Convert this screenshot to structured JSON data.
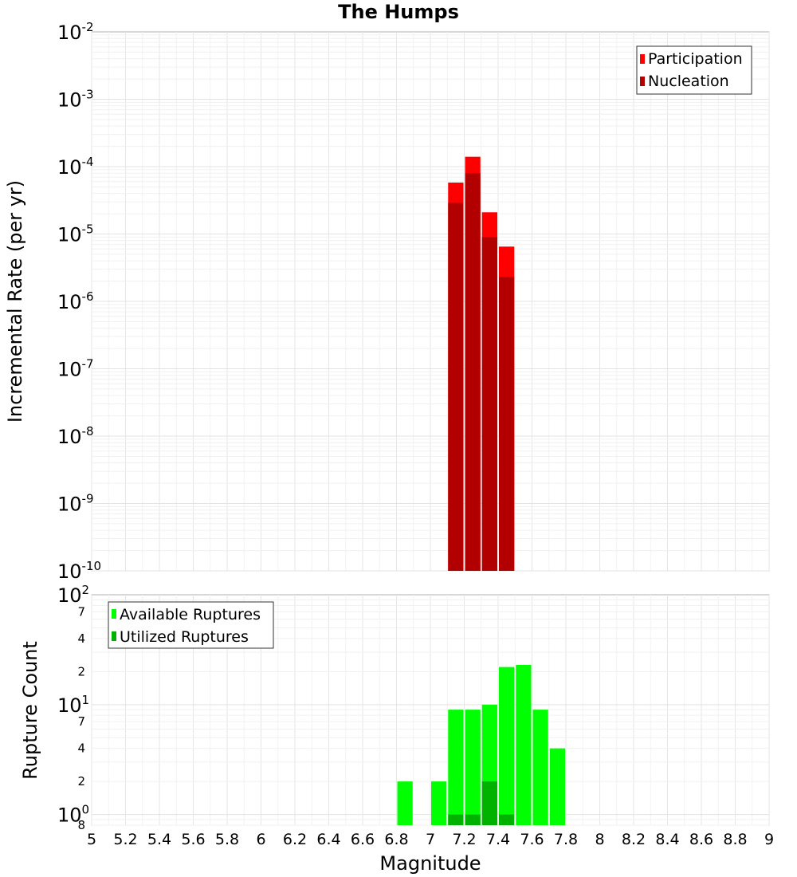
{
  "chart_data": [
    {
      "type": "bar",
      "title": "The Humps",
      "xlabel": "",
      "ylabel": "Incremental Rate (per yr)",
      "yscale": "log",
      "ylim": [
        1e-10,
        0.01
      ],
      "xlim": [
        5,
        9
      ],
      "bin_width": 0.1,
      "y_ticks": [
        {
          "base": "10",
          "exp": "-10",
          "value": 1e-10
        },
        {
          "base": "10",
          "exp": "-9",
          "value": 1e-09
        },
        {
          "base": "10",
          "exp": "-8",
          "value": 1e-08
        },
        {
          "base": "10",
          "exp": "-7",
          "value": 1e-07
        },
        {
          "base": "10",
          "exp": "-6",
          "value": 1e-06
        },
        {
          "base": "10",
          "exp": "-5",
          "value": 1e-05
        },
        {
          "base": "10",
          "exp": "-4",
          "value": 0.0001
        },
        {
          "base": "10",
          "exp": "-3",
          "value": 0.001
        },
        {
          "base": "10",
          "exp": "-2",
          "value": 0.01
        }
      ],
      "legend_position": "top-right",
      "series": [
        {
          "name": "Participation",
          "color": "#ff0000",
          "x": [
            7.15,
            7.25,
            7.35,
            7.45
          ],
          "values": [
            5.8e-05,
            0.00014,
            2.1e-05,
            6.5e-06
          ]
        },
        {
          "name": "Nucleation",
          "color": "#b20000",
          "x": [
            7.15,
            7.25,
            7.35,
            7.45
          ],
          "values": [
            2.9e-05,
            8e-05,
            9e-06,
            2.3e-06
          ]
        }
      ]
    },
    {
      "type": "bar",
      "title": "",
      "xlabel": "Magnitude",
      "ylabel": "Rupture Count",
      "yscale": "log",
      "ylim": [
        0.8,
        100
      ],
      "xlim": [
        5,
        9
      ],
      "bin_width": 0.1,
      "x_ticks": [
        "5",
        "5.2",
        "5.4",
        "5.6",
        "5.8",
        "6",
        "6.2",
        "6.4",
        "6.6",
        "6.8",
        "7",
        "7.2",
        "7.4",
        "7.6",
        "7.8",
        "8",
        "8.2",
        "8.4",
        "8.6",
        "8.8",
        "9"
      ],
      "y_major_ticks": [
        {
          "base": "10",
          "exp": "0",
          "value": 1
        },
        {
          "base": "10",
          "exp": "1",
          "value": 10
        },
        {
          "base": "10",
          "exp": "2",
          "value": 100
        }
      ],
      "y_minor_ticks": [
        {
          "label": "8",
          "value": 0.8
        },
        {
          "label": "2",
          "value": 2
        },
        {
          "label": "4",
          "value": 4
        },
        {
          "label": "7",
          "value": 7
        },
        {
          "label": "2",
          "value": 20
        },
        {
          "label": "4",
          "value": 40
        },
        {
          "label": "7",
          "value": 70
        }
      ],
      "legend_position": "top-left",
      "series": [
        {
          "name": "Available Ruptures",
          "color": "#00ff00",
          "x": [
            6.85,
            7.05,
            7.15,
            7.25,
            7.35,
            7.45,
            7.55,
            7.65,
            7.75
          ],
          "values": [
            2,
            2,
            9,
            9,
            10,
            22,
            23,
            9,
            4
          ]
        },
        {
          "name": "Utilized Ruptures",
          "color": "#00b200",
          "x": [
            7.15,
            7.25,
            7.35,
            7.45
          ],
          "values": [
            1,
            1,
            2,
            1
          ]
        }
      ]
    }
  ]
}
